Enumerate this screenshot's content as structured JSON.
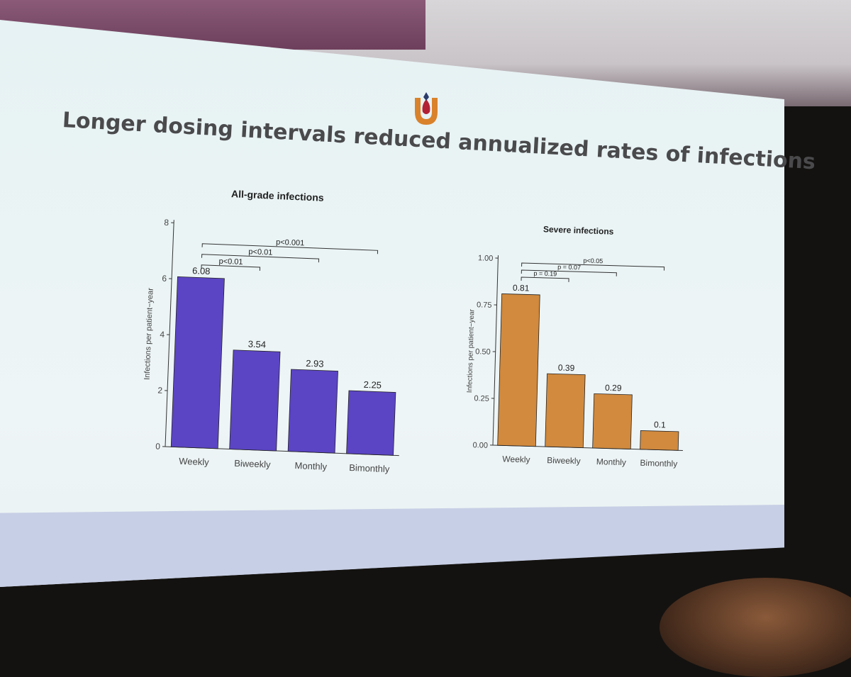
{
  "slide": {
    "title": "Longer dosing intervals reduced annualized rates of infections",
    "colors": {
      "logo_orange": "#d9822b",
      "logo_red": "#b22234",
      "logo_navy": "#2b3a6b",
      "footer_band": "#c7cfe6"
    }
  },
  "chart_data": [
    {
      "type": "bar",
      "title": "All-grade infections",
      "xlabel": "",
      "ylabel": "Infections per patient−year",
      "categories": [
        "Weekly",
        "Biweekly",
        "Monthly",
        "Bimonthly"
      ],
      "values": [
        6.08,
        3.54,
        2.93,
        2.25
      ],
      "value_labels": [
        "6.08",
        "3.54",
        "2.93",
        "2.25"
      ],
      "ylim": [
        0,
        8
      ],
      "yticks": [
        0,
        2,
        4,
        6,
        8
      ],
      "ytick_labels": [
        "0",
        "2",
        "4",
        "6",
        "8"
      ],
      "bar_color": "#5b45c4",
      "grid": false,
      "significance": [
        {
          "from": "Weekly",
          "to": "Biweekly",
          "label": "p<0.01"
        },
        {
          "from": "Weekly",
          "to": "Monthly",
          "label": "p<0.01"
        },
        {
          "from": "Weekly",
          "to": "Bimonthly",
          "label": "p<0.001"
        }
      ]
    },
    {
      "type": "bar",
      "title": "Severe infections",
      "xlabel": "",
      "ylabel": "Infections per patient−year",
      "categories": [
        "Weekly",
        "Biweekly",
        "Monthly",
        "Bimonthly"
      ],
      "values": [
        0.81,
        0.39,
        0.29,
        0.1
      ],
      "value_labels": [
        "0.81",
        "0.39",
        "0.29",
        "0.1"
      ],
      "ylim": [
        0,
        1.0
      ],
      "yticks": [
        0,
        0.25,
        0.5,
        0.75,
        1.0
      ],
      "ytick_labels": [
        "0.00",
        "0.25",
        "0.50",
        "0.75",
        "1.00"
      ],
      "bar_color": "#d18a3e",
      "grid": false,
      "significance": [
        {
          "from": "Weekly",
          "to": "Biweekly",
          "label": "p = 0.19"
        },
        {
          "from": "Weekly",
          "to": "Monthly",
          "label": "p = 0.07"
        },
        {
          "from": "Weekly",
          "to": "Bimonthly",
          "label": "p<0.05"
        }
      ]
    }
  ]
}
